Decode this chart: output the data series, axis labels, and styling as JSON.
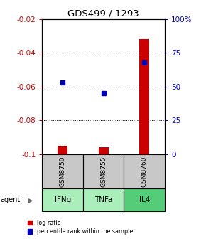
{
  "title": "GDS499 / 1293",
  "samples": [
    "GSM8750",
    "GSM8755",
    "GSM8760"
  ],
  "agents": [
    "IFNg",
    "TNFa",
    "IL4"
  ],
  "log_ratios": [
    -0.095,
    -0.096,
    -0.032
  ],
  "percentiles": [
    53,
    45,
    68
  ],
  "left_ylim": [
    -0.1,
    -0.02
  ],
  "right_ylim": [
    0,
    100
  ],
  "left_yticks": [
    -0.1,
    -0.08,
    -0.06,
    -0.04,
    -0.02
  ],
  "right_yticks": [
    0,
    25,
    50,
    75,
    100
  ],
  "right_yticklabels": [
    "0",
    "25",
    "50",
    "75",
    "100%"
  ],
  "bar_color": "#cc0000",
  "dot_color": "#0000bb",
  "gsm_bg": "#c8c8c8",
  "agent_bg_light": "#aaeebb",
  "agent_bg_dark": "#55cc77",
  "title_color": "#000000",
  "left_tick_color": "#cc0000",
  "right_tick_color": "#0000bb",
  "bar_width": 0.25
}
